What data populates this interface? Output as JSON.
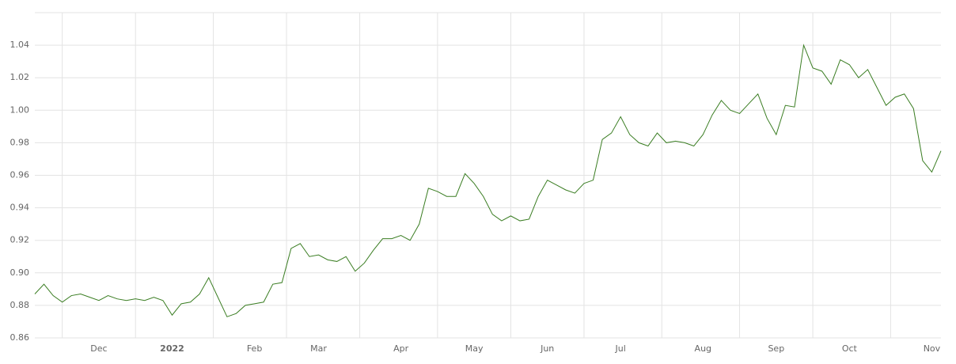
{
  "chart_data": {
    "type": "line",
    "categories": [
      null,
      null,
      null,
      null,
      null,
      null,
      null,
      "Dec",
      null,
      null,
      null,
      null,
      null,
      null,
      null,
      "2022",
      null,
      null,
      null,
      null,
      null,
      null,
      null,
      null,
      "Feb",
      null,
      null,
      null,
      null,
      null,
      null,
      "Mar",
      null,
      null,
      null,
      null,
      null,
      null,
      null,
      null,
      "Apr",
      null,
      null,
      null,
      null,
      null,
      null,
      null,
      "May",
      null,
      null,
      null,
      null,
      null,
      null,
      null,
      "Jun",
      null,
      null,
      null,
      null,
      null,
      null,
      null,
      "Jul",
      null,
      null,
      null,
      null,
      null,
      null,
      null,
      null,
      "Aug",
      null,
      null,
      null,
      null,
      null,
      null,
      null,
      "Sep",
      null,
      null,
      null,
      null,
      null,
      null,
      null,
      "Oct",
      null,
      null,
      null,
      null,
      null,
      null,
      null,
      null,
      "Nov",
      null
    ],
    "series": [
      {
        "color": "#3a7d22",
        "values": [
          0.887,
          0.893,
          0.886,
          0.882,
          0.886,
          0.887,
          0.885,
          0.883,
          0.886,
          0.884,
          0.883,
          0.884,
          0.883,
          0.885,
          0.883,
          0.874,
          0.881,
          0.882,
          0.887,
          0.897,
          0.885,
          0.873,
          0.875,
          0.88,
          0.881,
          0.882,
          0.893,
          0.894,
          0.915,
          0.918,
          0.91,
          0.911,
          0.908,
          0.907,
          0.91,
          0.901,
          0.906,
          0.914,
          0.921,
          0.921,
          0.923,
          0.92,
          0.93,
          0.952,
          0.95,
          0.947,
          0.947,
          0.961,
          0.955,
          0.947,
          0.936,
          0.932,
          0.935,
          0.932,
          0.933,
          0.947,
          0.957,
          0.954,
          0.951,
          0.949,
          0.955,
          0.957,
          0.982,
          0.986,
          0.996,
          0.985,
          0.98,
          0.978,
          0.986,
          0.98,
          0.981,
          0.98,
          0.978,
          0.985,
          0.997,
          1.006,
          1.0,
          0.998,
          1.004,
          1.01,
          0.995,
          0.985,
          1.003,
          1.002,
          1.04,
          1.026,
          1.024,
          1.016,
          1.031,
          1.028,
          1.02,
          1.025,
          1.014,
          1.003,
          1.008,
          1.01,
          1.001,
          0.969,
          0.962,
          0.975
        ]
      }
    ],
    "ylim": [
      0.86,
      1.06
    ],
    "yticks": [
      0.86,
      0.88,
      {
        "value": 0.9,
        "label": "0.90"
      },
      0.92,
      0.94,
      0.96,
      0.98,
      {
        "value": 1,
        "label": "1.00"
      },
      1.02,
      1.04
    ],
    "grid": true
  }
}
